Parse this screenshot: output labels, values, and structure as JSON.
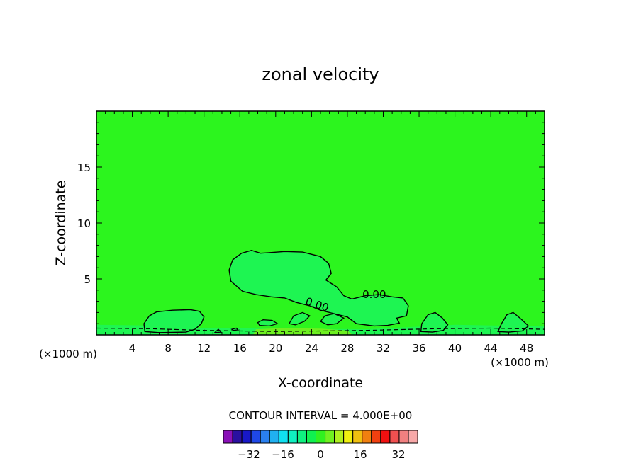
{
  "chart_data": {
    "type": "contour",
    "title": "zonal velocity",
    "xlabel": "X-coordinate",
    "ylabel": "Z-coordinate",
    "x_unit_left": "(×1000 m)",
    "x_unit_right": "(×1000 m)",
    "xlim": [
      0,
      50
    ],
    "ylim": [
      0,
      20
    ],
    "x_ticks": [
      4,
      8,
      12,
      16,
      20,
      24,
      28,
      32,
      36,
      40,
      44,
      48
    ],
    "y_ticks": [
      5,
      10,
      15
    ],
    "background_color": "#2cf51e",
    "contour_labels": [
      {
        "text": "0.00",
        "x": 31.0,
        "y": 3.3
      },
      {
        "text": "0.00",
        "x": 24.5,
        "y": 2.4
      }
    ],
    "contour_interval_text": "CONTOUR INTERVAL = 4.000E+00",
    "colorbar": {
      "colors": [
        "#8a10b8",
        "#2a10a0",
        "#1818c8",
        "#1f48e8",
        "#2a80f0",
        "#20b0f0",
        "#10e0f0",
        "#10f0c0",
        "#10f080",
        "#10f050",
        "#30f020",
        "#70f020",
        "#b0f020",
        "#f0f010",
        "#f0c010",
        "#f08010",
        "#f04010",
        "#f01010",
        "#f05050",
        "#f08080",
        "#f8a8a8"
      ],
      "tick_labels": [
        "−32",
        "−16",
        "0",
        "16",
        "32"
      ]
    }
  }
}
